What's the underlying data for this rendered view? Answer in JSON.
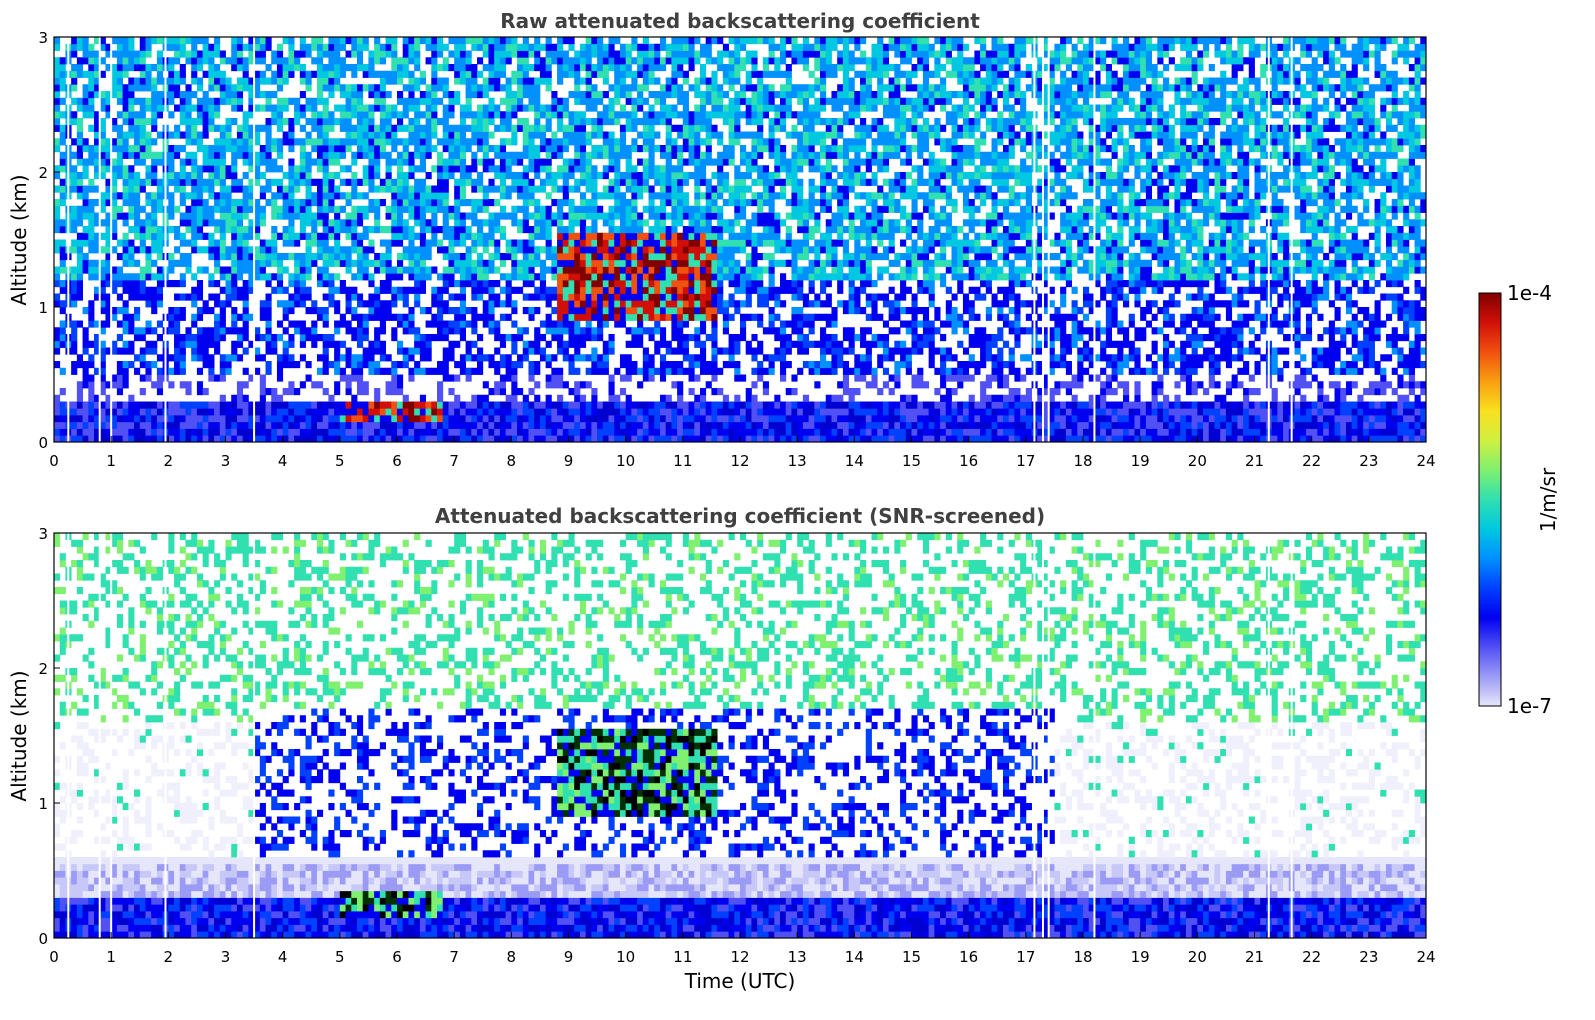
{
  "chart_data": [
    {
      "type": "heatmap",
      "title": "Raw attenuated backscattering coefficient",
      "xlabel": "",
      "ylabel": "Altitude (km)",
      "xlim": [
        0,
        24
      ],
      "ylim": [
        0,
        3
      ],
      "x_ticks": [
        0,
        1,
        2,
        3,
        4,
        5,
        6,
        7,
        8,
        9,
        10,
        11,
        12,
        13,
        14,
        15,
        16,
        17,
        18,
        19,
        20,
        21,
        22,
        23,
        24
      ],
      "y_ticks": [
        0,
        1,
        2,
        3
      ],
      "screened": false,
      "grid": false,
      "features": [
        {
          "time_start": 0,
          "time_end": 24,
          "alt_bottom": 0,
          "alt_top": 0.3,
          "level": "high-blue"
        },
        {
          "time_start": 5.0,
          "time_end": 6.8,
          "alt_bottom": 0.15,
          "alt_top": 0.3,
          "level": "red"
        },
        {
          "time_start": 8.8,
          "time_end": 11.6,
          "alt_bottom": 0.9,
          "alt_top": 1.55,
          "level": "red"
        }
      ],
      "data_gaps_utc": [
        0.25,
        0.8,
        1.0,
        1.95,
        3.5,
        17.15,
        17.3,
        17.4,
        18.2,
        21.25,
        21.65
      ]
    },
    {
      "type": "heatmap",
      "title": "Attenuated backscattering coefficient (SNR-screened)",
      "xlabel": "Time (UTC)",
      "ylabel": "Altitude (km)",
      "xlim": [
        0,
        24
      ],
      "ylim": [
        0,
        3
      ],
      "x_ticks": [
        0,
        1,
        2,
        3,
        4,
        5,
        6,
        7,
        8,
        9,
        10,
        11,
        12,
        13,
        14,
        15,
        16,
        17,
        18,
        19,
        20,
        21,
        22,
        23,
        24
      ],
      "y_ticks": [
        0,
        1,
        2,
        3
      ],
      "screened": true,
      "grid": false,
      "features": [
        {
          "time_start": 0,
          "time_end": 24,
          "alt_bottom": 0,
          "alt_top": 0.3,
          "level": "high-blue"
        },
        {
          "time_start": 0,
          "time_end": 24,
          "alt_bottom": 0.3,
          "alt_top": 0.55,
          "level": "pale"
        },
        {
          "time_start": 3.5,
          "time_end": 17.5,
          "alt_bottom": 0.6,
          "alt_top": 1.7,
          "level": "blue-patches"
        },
        {
          "time_start": 5.0,
          "time_end": 6.8,
          "alt_bottom": 0.15,
          "alt_top": 0.35,
          "level": "dark-green"
        },
        {
          "time_start": 8.8,
          "time_end": 11.6,
          "alt_bottom": 0.9,
          "alt_top": 1.55,
          "level": "dark-green"
        }
      ],
      "data_gaps_utc": [
        0.25,
        0.8,
        1.0,
        1.95,
        3.5,
        17.15,
        17.3,
        17.4,
        18.2,
        21.25,
        21.65
      ]
    }
  ],
  "colorbar": {
    "label": "1/m/sr",
    "max_label": "1e-4",
    "min_label": "1e-7",
    "scale": "log",
    "range": [
      1e-07,
      0.0001
    ],
    "colors": [
      "#e6e6fa",
      "#9b9bf5",
      "#5050f5",
      "#0000f0",
      "#0040ff",
      "#0090ff",
      "#00c8e0",
      "#30e0b0",
      "#80f070",
      "#d0f040",
      "#f8e020",
      "#f8a010",
      "#f05010",
      "#d01008",
      "#800000"
    ]
  }
}
